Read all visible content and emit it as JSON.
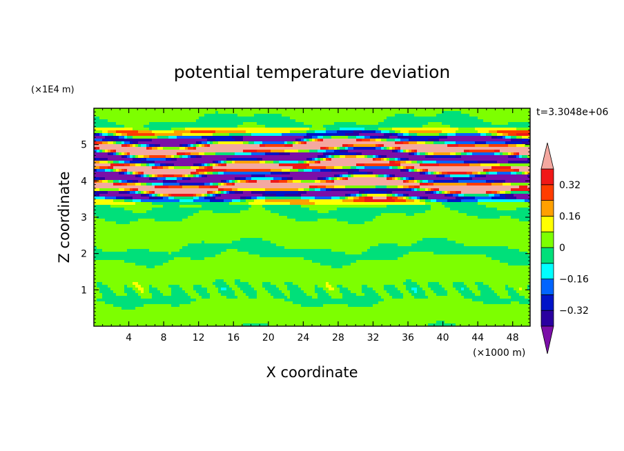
{
  "chart_data": {
    "type": "heatmap",
    "title": "potential temperature deviation",
    "xlabel": "X coordinate",
    "ylabel": "Z coordinate",
    "x_unit_label": "(×1000 m)",
    "y_unit_label": "(×1E4 m)",
    "time_label": "t=3.3048e+06",
    "xlim": [
      0,
      50
    ],
    "ylim": [
      0,
      6
    ],
    "x_ticks": [
      {
        "value": 4,
        "label": "4"
      },
      {
        "value": 8,
        "label": "8"
      },
      {
        "value": 12,
        "label": "12"
      },
      {
        "value": 16,
        "label": "16"
      },
      {
        "value": 20,
        "label": "20"
      },
      {
        "value": 24,
        "label": "24"
      },
      {
        "value": 28,
        "label": "28"
      },
      {
        "value": 32,
        "label": "32"
      },
      {
        "value": 36,
        "label": "36"
      },
      {
        "value": 40,
        "label": "40"
      },
      {
        "value": 44,
        "label": "44"
      },
      {
        "value": 48,
        "label": "48"
      }
    ],
    "y_ticks": [
      {
        "value": 1,
        "label": "1"
      },
      {
        "value": 2,
        "label": "2"
      },
      {
        "value": 3,
        "label": "3"
      },
      {
        "value": 4,
        "label": "4"
      },
      {
        "value": 5,
        "label": "5"
      }
    ],
    "colorbar": {
      "levels": [
        -0.4,
        -0.32,
        -0.24,
        -0.16,
        -0.08,
        0,
        0.08,
        0.16,
        0.24,
        0.32,
        0.4
      ],
      "colors": [
        "#7b0fa8",
        "#2a00a0",
        "#0014c8",
        "#0064ff",
        "#00ffff",
        "#00e07a",
        "#7dff00",
        "#ffff00",
        "#ffa000",
        "#ff3c00",
        "#f01818",
        "#f4a8a0"
      ],
      "labels": [
        {
          "value": 0.32,
          "label": "0.32"
        },
        {
          "value": 0.16,
          "label": "0.16"
        },
        {
          "value": 0,
          "label": "0"
        },
        {
          "value": -0.16,
          "label": "−0.16"
        },
        {
          "value": -0.32,
          "label": "−0.32"
        }
      ]
    },
    "field_features": {
      "background_value": 0.02,
      "upper_layer_z": [
        3.4,
        5.4
      ],
      "boundary_layer_z": 1.0
    }
  }
}
